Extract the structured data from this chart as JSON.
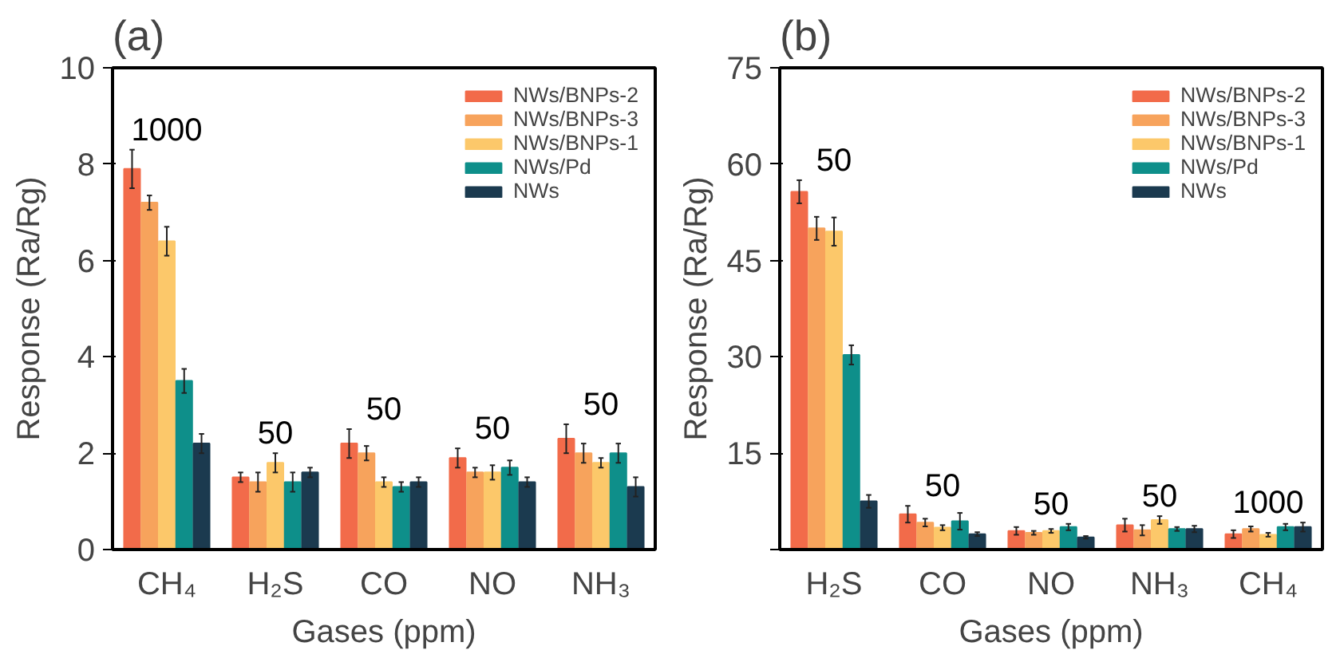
{
  "chart_data": [
    {
      "type": "bar",
      "title": "(a)",
      "xlabel": "Gases (ppm)",
      "ylabel": "Response (Ra/Rg)",
      "categories": [
        "CH₄",
        "H₂S",
        "CO",
        "NO",
        "NH₃"
      ],
      "ylim": [
        0,
        10
      ],
      "yticks": [
        0,
        2,
        4,
        6,
        8,
        10
      ],
      "grid": false,
      "legend": "top right",
      "series": [
        {
          "name": "NWs/BNPs-2",
          "color": "#f26b4a",
          "values": [
            7.9,
            1.5,
            2.2,
            1.9,
            2.3
          ],
          "errors": [
            0.4,
            0.1,
            0.3,
            0.2,
            0.3
          ]
        },
        {
          "name": "NWs/BNPs-3",
          "color": "#f7a35c",
          "values": [
            7.2,
            1.4,
            2.0,
            1.6,
            2.0
          ],
          "errors": [
            0.15,
            0.2,
            0.15,
            0.1,
            0.2
          ]
        },
        {
          "name": "NWs/BNPs-1",
          "color": "#fcc86a",
          "values": [
            6.4,
            1.8,
            1.4,
            1.6,
            1.8
          ],
          "errors": [
            0.3,
            0.2,
            0.1,
            0.15,
            0.1
          ]
        },
        {
          "name": "NWs/Pd",
          "color": "#0e8f8a",
          "values": [
            3.5,
            1.4,
            1.3,
            1.7,
            2.0
          ],
          "errors": [
            0.25,
            0.2,
            0.1,
            0.15,
            0.2
          ]
        },
        {
          "name": "NWs",
          "color": "#1b3a4f",
          "values": [
            2.2,
            1.6,
            1.4,
            1.4,
            1.3
          ],
          "errors": [
            0.2,
            0.1,
            0.1,
            0.1,
            0.2
          ]
        }
      ],
      "annotations": [
        "1000",
        "50",
        "50",
        "50",
        "50"
      ]
    },
    {
      "type": "bar",
      "title": "(b)",
      "xlabel": "Gases (ppm)",
      "ylabel": "Response (Ra/Rg)",
      "categories": [
        "H₂S",
        "CO",
        "NO",
        "NH₃",
        "CH₄"
      ],
      "ylim": [
        0,
        75
      ],
      "yticks": [
        {
          "value": 0,
          "label": null
        },
        15,
        30,
        45,
        60,
        75
      ],
      "grid": false,
      "legend": "top right",
      "series": [
        {
          "name": "NWs/BNPs-2",
          "color": "#f26b4a",
          "values": [
            55.7,
            5.5,
            2.9,
            3.8,
            2.4
          ],
          "errors": [
            1.8,
            1.3,
            0.6,
            1.0,
            0.6
          ]
        },
        {
          "name": "NWs/BNPs-3",
          "color": "#f7a35c",
          "values": [
            50.0,
            4.2,
            2.6,
            3.0,
            3.2
          ],
          "errors": [
            1.8,
            0.6,
            0.3,
            0.8,
            0.4
          ]
        },
        {
          "name": "NWs/BNPs-1",
          "color": "#fcc86a",
          "values": [
            49.5,
            3.4,
            2.9,
            4.6,
            2.3
          ],
          "errors": [
            2.2,
            0.4,
            0.3,
            0.6,
            0.3
          ]
        },
        {
          "name": "NWs/Pd",
          "color": "#0e8f8a",
          "values": [
            30.3,
            4.4,
            3.5,
            3.2,
            3.5
          ],
          "errors": [
            1.5,
            1.3,
            0.5,
            0.3,
            0.5
          ]
        },
        {
          "name": "NWs",
          "color": "#1b3a4f",
          "values": [
            7.5,
            2.4,
            1.9,
            3.2,
            3.5
          ],
          "errors": [
            1.0,
            0.3,
            0.2,
            0.5,
            0.7
          ]
        }
      ],
      "annotations": [
        "50",
        "50",
        "50",
        "50",
        "1000"
      ]
    }
  ]
}
